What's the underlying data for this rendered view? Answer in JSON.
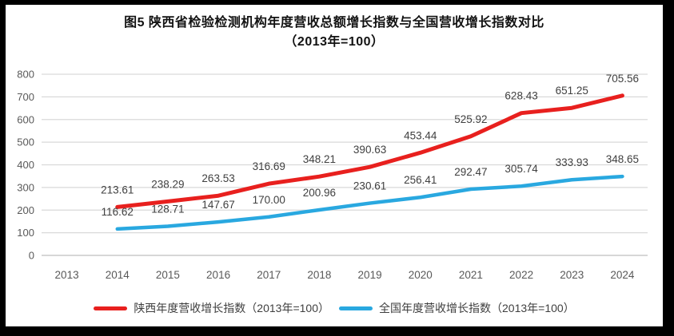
{
  "figure": {
    "title": "图5  陕西省检验检测机构年度营收总额增长指数与全国营收增长指数对比",
    "subtitle": "（2013年=100）"
  },
  "chart_data": {
    "type": "line",
    "title": "图5  陕西省检验检测机构年度营收总额增长指数与全国营收增长指数对比",
    "subtitle": "（2013年=100）",
    "categories": [
      "2013",
      "2014",
      "2015",
      "2016",
      "2017",
      "2018",
      "2019",
      "2020",
      "2021",
      "2022",
      "2023",
      "2024"
    ],
    "y_axis": {
      "min": 0,
      "max": 800,
      "step": 100,
      "tick_labels": [
        "0",
        "100",
        "200",
        "300",
        "400",
        "500",
        "600",
        "700",
        "800"
      ]
    },
    "grid": "horizontal",
    "legend_position": "bottom",
    "data_labels": true,
    "series": [
      {
        "name": "陕西年度营收增长指数（2013年=100）",
        "color": "#E8201E",
        "start_category_index": 1,
        "values": [
          213.61,
          238.29,
          263.53,
          316.69,
          348.21,
          390.63,
          453.44,
          525.92,
          628.43,
          651.25,
          705.56
        ],
        "labels": [
          "213.61",
          "238.29",
          "263.53",
          "316.69",
          "348.21",
          "390.63",
          "453.44",
          "525.92",
          "628.43",
          "651.25",
          "705.56"
        ]
      },
      {
        "name": "全国年度营收增长指数（2013年=100）",
        "color": "#29A8E0",
        "start_category_index": 1,
        "values": [
          116.62,
          128.71,
          147.67,
          170.0,
          200.96,
          230.61,
          256.41,
          292.47,
          305.74,
          333.93,
          348.65
        ],
        "labels": [
          "116.62",
          "128.71",
          "147.67",
          "170.00",
          "200.96",
          "230.61",
          "256.41",
          "292.47",
          "305.74",
          "333.93",
          "348.65"
        ]
      }
    ],
    "style": {
      "gridline_color": "#D9D9D9",
      "baseline_color": "#BFBFBF",
      "tick_label_color": "#595959",
      "data_label_color": "#3F3F3F"
    }
  }
}
